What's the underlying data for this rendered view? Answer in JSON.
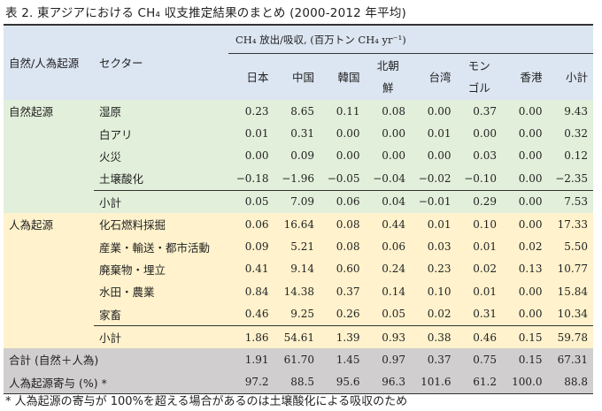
{
  "title": "表 2. 東アジアにおける CH₄ 収支推定結果のまとめ (2000-2012 年平均)",
  "header": {
    "unit_label": "CH₄ 放出/吸収, (百万トン CH₄ yr⁻¹)",
    "origin_label": "自然/人為起源",
    "sector_label": "セクター",
    "columns": [
      "日本",
      "中国",
      "韓国",
      "北朝鮮",
      "台湾",
      "モンゴル",
      "香港",
      "小計"
    ]
  },
  "colors": {
    "header": "#dce6f2",
    "natural": "#e2efda",
    "anthropogenic": "#fff2cc",
    "total": "#d0cece"
  },
  "groups": [
    {
      "origin": "自然起源",
      "kind": "natural",
      "rows": [
        {
          "sector": "湿原",
          "values": [
            "0.23",
            "8.65",
            "0.11",
            "0.08",
            "0.00",
            "0.37",
            "0.00",
            "9.43"
          ]
        },
        {
          "sector": "白アリ",
          "values": [
            "0.01",
            "0.31",
            "0.00",
            "0.00",
            "0.01",
            "0.00",
            "0.00",
            "0.32"
          ]
        },
        {
          "sector": "火災",
          "values": [
            "0.00",
            "0.09",
            "0.00",
            "0.00",
            "0.00",
            "0.03",
            "0.00",
            "0.12"
          ]
        },
        {
          "sector": "土壌酸化",
          "values": [
            "−0.18",
            "−1.96",
            "−0.05",
            "−0.04",
            "−0.02",
            "−0.10",
            "0.00",
            "−2.35"
          ]
        }
      ],
      "subtotal": {
        "sector": "小計",
        "values": [
          "0.05",
          "7.09",
          "0.06",
          "0.04",
          "−0.01",
          "0.29",
          "0.00",
          "7.53"
        ]
      }
    },
    {
      "origin": "人為起源",
      "kind": "anthro",
      "rows": [
        {
          "sector": "化石燃料採掘",
          "values": [
            "0.06",
            "16.64",
            "0.08",
            "0.44",
            "0.01",
            "0.10",
            "0.00",
            "17.33"
          ]
        },
        {
          "sector": "産業・輸送・都市活動",
          "values": [
            "0.09",
            "5.21",
            "0.08",
            "0.06",
            "0.03",
            "0.01",
            "0.02",
            "5.50"
          ]
        },
        {
          "sector": "廃棄物・埋立",
          "values": [
            "0.41",
            "9.14",
            "0.60",
            "0.24",
            "0.23",
            "0.02",
            "0.13",
            "10.77"
          ]
        },
        {
          "sector": "水田・農業",
          "values": [
            "0.84",
            "14.38",
            "0.37",
            "0.14",
            "0.10",
            "0.01",
            "0.00",
            "15.84"
          ]
        },
        {
          "sector": "家畜",
          "values": [
            "0.46",
            "9.25",
            "0.26",
            "0.05",
            "0.02",
            "0.31",
            "0.00",
            "10.34"
          ]
        }
      ],
      "subtotal": {
        "sector": "小計",
        "values": [
          "1.86",
          "54.61",
          "1.39",
          "0.93",
          "0.38",
          "0.46",
          "0.15",
          "59.78"
        ]
      }
    }
  ],
  "totals": [
    {
      "label": "合計 (自然＋人為)",
      "values": [
        "1.91",
        "61.70",
        "1.45",
        "0.97",
        "0.37",
        "0.75",
        "0.15",
        "67.31"
      ]
    },
    {
      "label": "人為起源寄与 (%) *",
      "values": [
        "97.2",
        "88.5",
        "95.6",
        "96.3",
        "101.6",
        "61.2",
        "100.0",
        "88.8"
      ]
    }
  ],
  "footnote": "* 人為起源の寄与が 100%を超える場合があるのは土壌酸化による吸収のため"
}
